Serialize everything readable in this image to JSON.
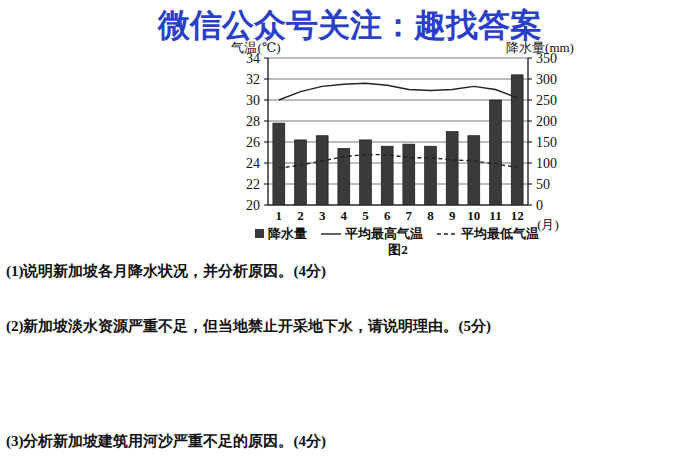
{
  "watermark": "微信公众号关注：趣找答案",
  "chart_data": {
    "type": "bar",
    "caption": "图2",
    "y_label": "气温(℃)",
    "y2_label": "降水量(mm)",
    "x_label": "(月)",
    "categories": [
      "1",
      "2",
      "3",
      "4",
      "5",
      "6",
      "7",
      "8",
      "9",
      "10",
      "11",
      "12"
    ],
    "series": [
      {
        "name": "降水量",
        "type": "bar",
        "axis": "y2",
        "color": "#3a3a3a",
        "values": [
          195,
          155,
          165,
          135,
          155,
          140,
          145,
          140,
          175,
          165,
          250,
          310
        ]
      },
      {
        "name": "平均最高气温",
        "type": "line",
        "axis": "y",
        "color": "#222222",
        "line_style": "solid",
        "values": [
          30.0,
          30.8,
          31.3,
          31.5,
          31.6,
          31.4,
          31.0,
          30.9,
          31.0,
          31.3,
          31.0,
          30.2
        ]
      },
      {
        "name": "平均最低气温",
        "type": "line",
        "axis": "y",
        "color": "#222222",
        "line_style": "dashed",
        "values": [
          23.5,
          23.8,
          24.2,
          24.6,
          24.8,
          24.8,
          24.5,
          24.5,
          24.3,
          24.2,
          23.9,
          23.6
        ]
      }
    ],
    "ylim": [
      20,
      34
    ],
    "yticks": [
      20,
      22,
      24,
      26,
      28,
      30,
      32,
      34
    ],
    "y2lim": [
      0,
      350
    ],
    "y2ticks": [
      0,
      50,
      100,
      150,
      200,
      250,
      300,
      350
    ],
    "grid": true,
    "legend": "bottom"
  },
  "questions": [
    "(1)说明新加坡各月降水状况，并分析原因。(4分)",
    "(2)新加坡淡水资源严重不足，但当地禁止开采地下水，请说明理由。(5分)",
    "(3)分析新加坡建筑用河沙严重不足的原因。(4分)"
  ]
}
